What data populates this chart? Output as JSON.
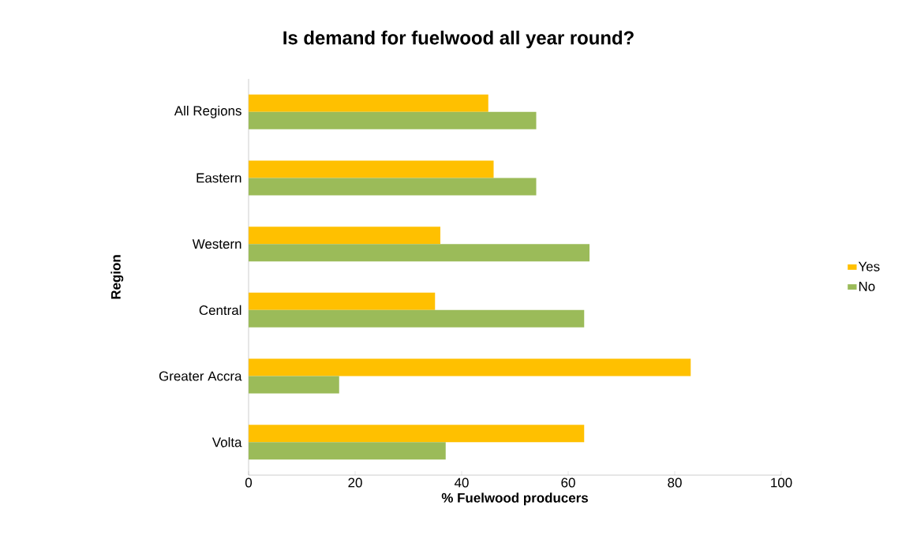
{
  "chart_data": {
    "type": "bar",
    "orientation": "horizontal",
    "title": "Is demand for fuelwood all year round?",
    "xlabel": "% Fuelwood producers",
    "ylabel": "Region",
    "categories": [
      "All Regions",
      "Eastern",
      "Western",
      "Central",
      "Greater Accra",
      "Volta"
    ],
    "series": [
      {
        "name": "Yes",
        "color": "#ffc000",
        "values": [
          45,
          46,
          36,
          35,
          83,
          63
        ]
      },
      {
        "name": "No",
        "color": "#9bbb59",
        "values": [
          54,
          54,
          64,
          63,
          17,
          37
        ]
      }
    ],
    "xlim": [
      0,
      100
    ],
    "xticks": [
      0,
      20,
      40,
      60,
      80,
      100
    ],
    "legend": "right"
  }
}
